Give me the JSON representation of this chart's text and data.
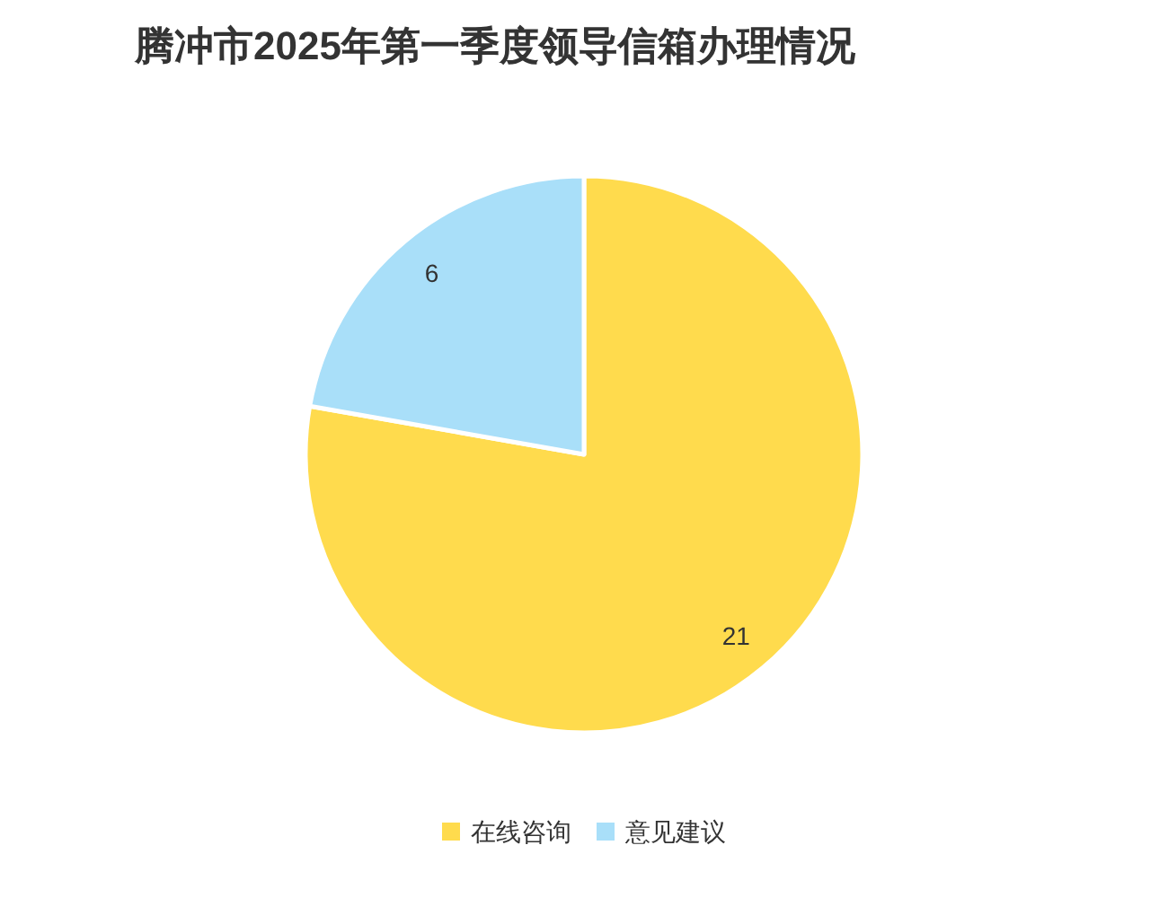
{
  "chart_data": {
    "type": "pie",
    "title": "腾冲市2025年第一季度领导信箱办理情况",
    "categories": [
      "在线咨询",
      "意见建议"
    ],
    "values": [
      21,
      6
    ],
    "colors": [
      "#ffdb4d",
      "#a9dff9"
    ],
    "data_labels": true,
    "legend": "bottom"
  }
}
